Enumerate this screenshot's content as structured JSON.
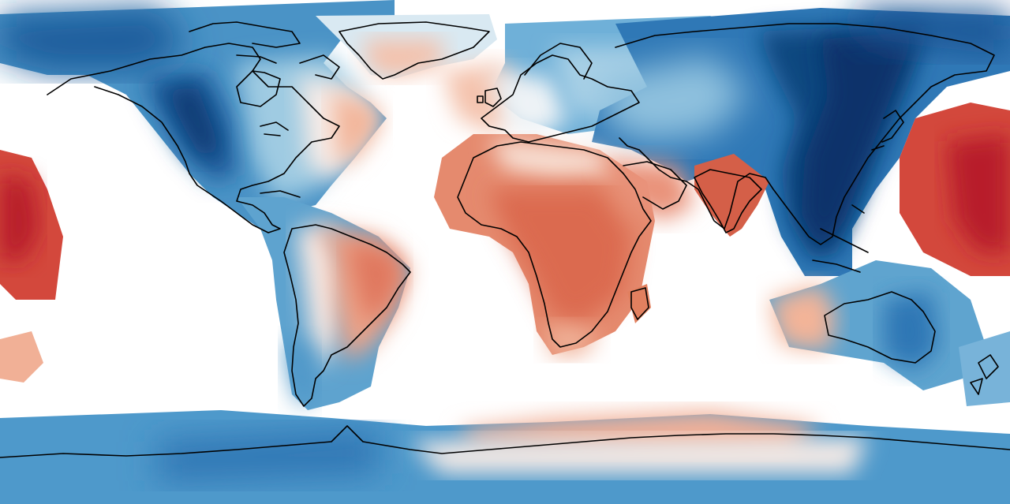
{
  "map": {
    "projection": "equirectangular",
    "colormap": "diverging-red-blue",
    "coastlines": true,
    "colors": {
      "strong_red": "#b81f2b",
      "red": "#d6604d",
      "light_red": "#f4a582",
      "pale_red": "#fddbc7",
      "neutral": "#f7f7f7",
      "pale_blue": "#d1e5f0",
      "light_blue": "#92c5de",
      "blue": "#4393c3",
      "dark_blue": "#2166ac",
      "navy": "#08306b",
      "coastline": "#000000",
      "background": "#ffffff"
    }
  }
}
